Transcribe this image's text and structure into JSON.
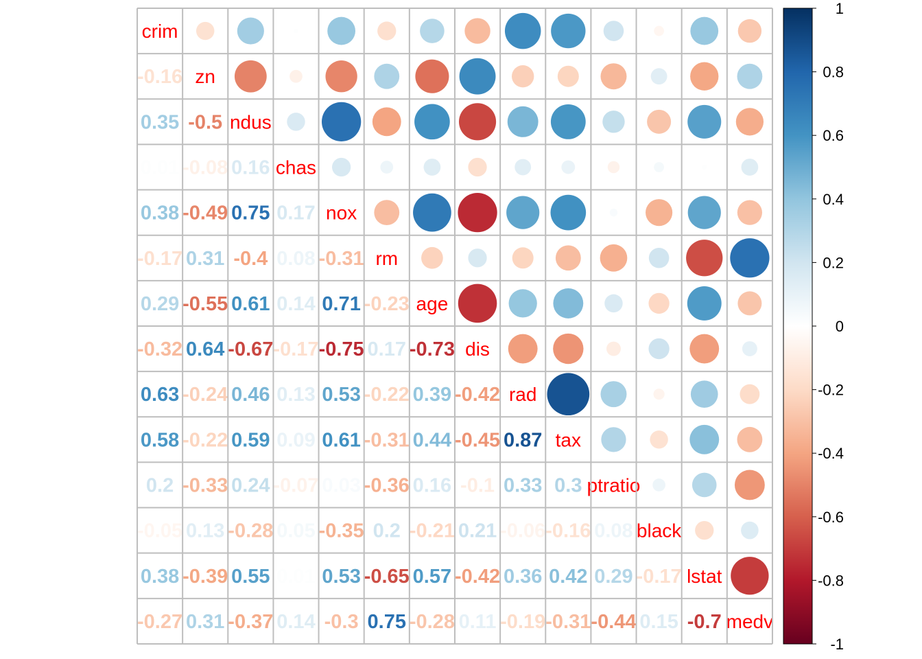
{
  "chart_data": {
    "type": "correlation-matrix",
    "upper_glyph": "circle",
    "lower_glyph": "number",
    "variables": [
      "crim",
      "zn",
      "indus",
      "chas",
      "nox",
      "rm",
      "age",
      "dis",
      "rad",
      "tax",
      "ptratio",
      "black",
      "lstat",
      "medv"
    ],
    "diagonal_labels": [
      "crim",
      "zn",
      "ndus",
      "chas",
      "nox",
      "rm",
      "age",
      "dis",
      "rad",
      "tax",
      "ptratio",
      "black",
      "lstat",
      "medv"
    ],
    "matrix": [
      [
        1,
        -0.16,
        0.35,
        0.01,
        0.38,
        -0.17,
        0.29,
        -0.32,
        0.63,
        0.58,
        0.2,
        -0.05,
        0.38,
        -0.27
      ],
      [
        -0.16,
        1,
        -0.5,
        -0.08,
        -0.49,
        0.31,
        -0.55,
        0.64,
        -0.24,
        -0.22,
        -0.33,
        0.13,
        -0.39,
        0.31
      ],
      [
        0.35,
        -0.5,
        1,
        0.16,
        0.75,
        -0.4,
        0.61,
        -0.67,
        0.46,
        0.59,
        0.24,
        -0.28,
        0.55,
        -0.37
      ],
      [
        0.01,
        -0.08,
        0.16,
        1,
        0.17,
        0.08,
        0.14,
        -0.17,
        0.13,
        0.09,
        -0.07,
        0.05,
        0.01,
        0.14
      ],
      [
        0.38,
        -0.49,
        0.75,
        0.17,
        1,
        -0.31,
        0.71,
        -0.75,
        0.53,
        0.61,
        0.03,
        -0.35,
        0.53,
        -0.3
      ],
      [
        -0.17,
        0.31,
        -0.4,
        0.08,
        -0.31,
        1,
        -0.23,
        0.17,
        -0.22,
        -0.31,
        -0.36,
        0.2,
        -0.65,
        0.75
      ],
      [
        0.29,
        -0.55,
        0.61,
        0.14,
        0.71,
        -0.23,
        1,
        -0.73,
        0.39,
        0.44,
        0.16,
        -0.21,
        0.57,
        -0.28
      ],
      [
        -0.32,
        0.64,
        -0.67,
        -0.17,
        -0.75,
        0.17,
        -0.73,
        1,
        -0.42,
        -0.45,
        -0.1,
        0.21,
        -0.42,
        0.11
      ],
      [
        0.63,
        -0.24,
        0.46,
        0.13,
        0.53,
        -0.22,
        0.39,
        -0.42,
        1,
        0.87,
        0.33,
        -0.06,
        0.36,
        -0.19
      ],
      [
        0.58,
        -0.22,
        0.59,
        0.09,
        0.61,
        -0.31,
        0.44,
        -0.45,
        0.87,
        1,
        0.3,
        -0.16,
        0.42,
        -0.31
      ],
      [
        0.2,
        -0.33,
        0.24,
        -0.07,
        0.03,
        -0.36,
        0.16,
        -0.1,
        0.33,
        0.3,
        1,
        0.08,
        0.29,
        -0.44
      ],
      [
        -0.05,
        0.13,
        -0.28,
        0.05,
        -0.35,
        0.2,
        -0.21,
        0.21,
        -0.06,
        -0.16,
        0.08,
        1,
        -0.17,
        0.15
      ],
      [
        0.38,
        -0.39,
        0.55,
        0.01,
        0.53,
        -0.65,
        0.57,
        -0.42,
        0.36,
        0.42,
        0.29,
        -0.17,
        1,
        -0.7
      ],
      [
        -0.27,
        0.31,
        -0.37,
        0.14,
        -0.3,
        0.75,
        -0.28,
        0.11,
        -0.19,
        -0.31,
        -0.44,
        0.15,
        -0.7,
        1
      ]
    ],
    "colorbar": {
      "range": [
        -1,
        1
      ],
      "ticks": [
        "1",
        "0.8",
        "0.6",
        "0.4",
        "0.2",
        "0",
        "-0.2",
        "-0.4",
        "-0.6",
        "-0.8",
        "-1"
      ],
      "tick_values": [
        1,
        0.8,
        0.6,
        0.4,
        0.2,
        0,
        -0.2,
        -0.4,
        -0.6,
        -0.8,
        -1
      ],
      "colors": [
        "#67001F",
        "#B2182B",
        "#D6604D",
        "#F4A582",
        "#FDDBC7",
        "#FFFFFF",
        "#D1E5F0",
        "#92C5DE",
        "#4393C3",
        "#2166AC",
        "#053061"
      ]
    },
    "label_color": "#FF0000",
    "grid": true,
    "legend_position": "right"
  }
}
